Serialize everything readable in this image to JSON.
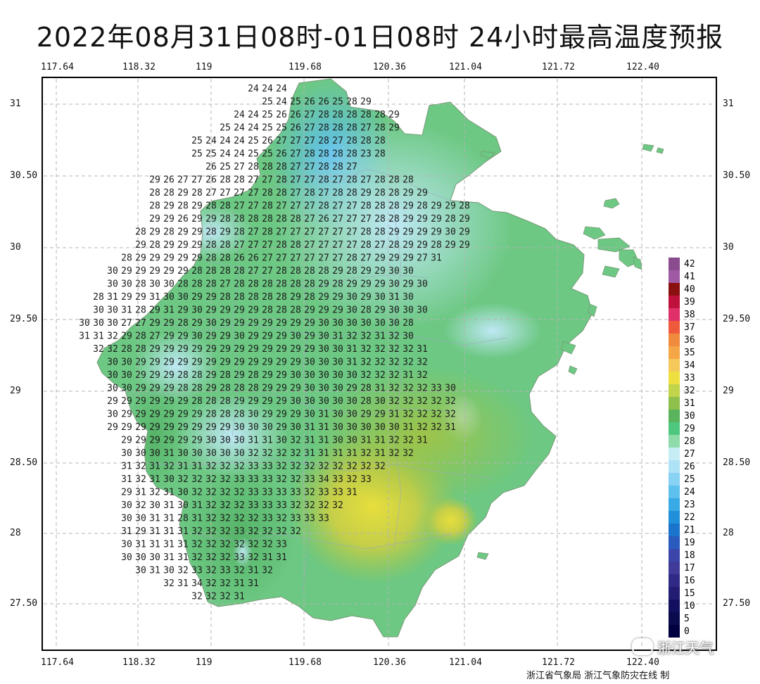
{
  "title": "2022年08月31日08时-01日08时 24小时最高温度预报",
  "x_ticks": [
    "117.64",
    "118.32",
    "119",
    "119.68",
    "120.36",
    "121.04",
    "121.72",
    "122.40"
  ],
  "y_ticks": [
    "31",
    "30.50",
    "30",
    "29.50",
    "29",
    "28.50",
    "28",
    "27.50"
  ],
  "legend": {
    "values": [
      "42",
      "41",
      "40",
      "39",
      "38",
      "37",
      "36",
      "35",
      "34",
      "33",
      "32",
      "31",
      "30",
      "29",
      "28",
      "27",
      "26",
      "25",
      "24",
      "23",
      "22",
      "21",
      "19",
      "18",
      "17",
      "16",
      "15",
      "10",
      "5",
      "0"
    ],
    "colors": [
      "#8b4b8f",
      "#a05aa5",
      "#8b1010",
      "#c0103c",
      "#e0306a",
      "#f05a3c",
      "#f08a3c",
      "#f5a646",
      "#f5c85a",
      "#eee040",
      "#c2d44a",
      "#8fc04c",
      "#5ab45e",
      "#4ec87e",
      "#8edcaa",
      "#c6ecf4",
      "#aee2f6",
      "#88d2f4",
      "#5ec0ee",
      "#38aae6",
      "#2090da",
      "#1a74cc",
      "#2a5cc0",
      "#3a46aa",
      "#403a98",
      "#302a86",
      "#221c72",
      "#12105e",
      "#0a0a4e",
      "#000040"
    ]
  },
  "credit": "浙江省气象局  浙江气象防灾在线 制",
  "watermark": "浙江天气",
  "grid": {
    "x0": 300,
    "dx": 20,
    "y0": 130,
    "dy": 18.5,
    "rows": [
      [
        7,
        "24 24 24"
      ],
      [
        8,
        "25 24 25 26 26 25 28 29"
      ],
      [
        6,
        "24 24 25 26 26 27 28 28 28 28 28 29"
      ],
      [
        5,
        "25 24 24 25 25 26 27 28 28 28 27 28 29"
      ],
      [
        3,
        "25 24 24 24 25 26 27 27 27 28 27 28 28 28"
      ],
      [
        3,
        "25 25 24 24 25 25 26 27 28 28 28 28 23 28"
      ],
      [
        4,
        "26 25 27 28 28 28 27 27 28 28 27"
      ],
      [
        0,
        "29 26 27 27 26 28 28 27 27 28 27 27 28 27 28 27 28 28 28"
      ],
      [
        0,
        "28 28 29 28 27 27 27 27 28 28 27 28 27 28 28 29 28 28 29 29"
      ],
      [
        0,
        "28 29 28 29 28 28 27 27 28 27 27 27 28 27 27 28 28 28 29 28 29 29 28"
      ],
      [
        0,
        "29 29 26 29 29 28 28 28 28 28 28 27 26 27 27 27 28 28 29 29 29 28 29"
      ],
      [
        -1,
        "28 29 28 29 29 28 29 28 27 28 27 27 27 27 27 27 28 28 29 29 29 29 30 29"
      ],
      [
        -1,
        "29 28 29 29 29 28 28 27 27 27 28 28 27 27 27 27 28 27 28 29 29 28 29 29"
      ],
      [
        -2,
        "28 29 29 29 29 29 28 28 26 26 27 27 27 27 27 27 28 27 29 29 29 27 31"
      ],
      [
        -3,
        "30 29 29 29 29 29 28 28 28 28 27 27 28 28 28 28 29 28 29 29 30 30"
      ],
      [
        -3,
        "30 30 28 30 30 28 28 28 27 28 28 28 28 28 28 29 28 29 29 29 30 29 30"
      ],
      [
        -4,
        "28 31 29 29 31 30 30 29 29 28 28 28 28 28 29 28 29 29 30 29 30 31 30"
      ],
      [
        -4,
        "30 30 31 28 29 31 29 30 29 29 29 29 28 28 28 29 29 29 30 28 29 30 30 30"
      ],
      [
        -5,
        "30 30 30 27 27 29 29 28 29 30 29 29 29 29 29 29 29 30 30 30 30 30 30 28"
      ],
      [
        -5,
        "31 31 32 29 28 27 29 29 30 29 29 30 29 29 29 30 29 30 31 32 32 31 32 30"
      ],
      [
        -4,
        "32 32 28 28 29 29 29 29 29 29 29 29 29 29 29 29 30 30 31 32 32 32 32 31"
      ],
      [
        -3,
        "30 30 29 29 29 29 29 29 29 29 29 29 29 29 30 30 30 31 32 32 32 32 32"
      ],
      [
        -3,
        "30 30 29 29 29 28 28 29 28 29 28 29 29 30 30 30 30 30 32 32 32 31 32"
      ],
      [
        -3,
        "30 30 29 29 29 28 28 29 28 28 28 29 29 29 30 30 30 29 28 31 32 32 32 33 30"
      ],
      [
        -3,
        "29 29 29 29 29 29 28 28 28 29 29 29 29 30 30 30 30 30 28 30 32 32 32 32 32"
      ],
      [
        -3,
        "30 29 29 29 29 29 29 28 28 28 30 29 29 29 30 31 30 30 29 29 31 32 32 32 32"
      ],
      [
        -3,
        "29 29 29 29 29 29 29 29 29 30 30 30 29 30 31 31 30 30 30 30 30 31 32 32 31"
      ],
      [
        -2,
        "29 29 29 29 29 29 30 30 30 31 31 30 32 31 31 30 30 31 31 32 32 31"
      ],
      [
        -2,
        "30 30 30 31 30 30 30 30 30 32 32 32 32 31 31 31 31 32 31 32 32"
      ],
      [
        -2,
        "31 32 31 32 31 31 32 32 32 33 33 32 32 32 32 32 32 32 32"
      ],
      [
        -2,
        "31 32 31 30 32 32 32 32 33 33 33 32 32 33 34 33 32 33"
      ],
      [
        -2,
        "29 31 32 31 30 32 32 32 32 33 33 33 33 32 33 33 31"
      ],
      [
        -2,
        "30 32 30 31 30 31 32 32 32 33 33 33 32 32 32 32"
      ],
      [
        -2,
        "30 30 31 31 28 31 32 32 32 32 33 32 33 33 33"
      ],
      [
        -2,
        "31 29 31 31 31 32 32 32 33 32 32 32 32"
      ],
      [
        -2,
        "30 31 31 31 31 32 32 32 32 32 32 33"
      ],
      [
        -2,
        "30 30 30 31 31 32 32 32 33 32 31 31"
      ],
      [
        -1,
        "30 31 30 32 33 32 33 32 31 32"
      ],
      [
        1,
        "32 31 34 32 32 31 31"
      ],
      [
        3,
        "32 32 32 31"
      ]
    ]
  }
}
